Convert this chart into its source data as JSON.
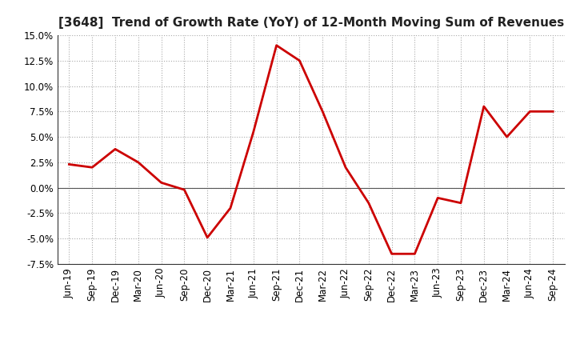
{
  "title": "[3648]  Trend of Growth Rate (YoY) of 12-Month Moving Sum of Revenues",
  "x_labels": [
    "Jun-19",
    "Sep-19",
    "Dec-19",
    "Mar-20",
    "Jun-20",
    "Sep-20",
    "Dec-20",
    "Mar-21",
    "Jun-21",
    "Sep-21",
    "Dec-21",
    "Mar-22",
    "Jun-22",
    "Sep-22",
    "Dec-22",
    "Mar-23",
    "Jun-23",
    "Sep-23",
    "Dec-23",
    "Mar-24",
    "Jun-24",
    "Sep-24"
  ],
  "y_values": [
    2.3,
    2.0,
    3.8,
    2.5,
    0.5,
    -0.2,
    -4.9,
    -2.0,
    5.5,
    14.0,
    12.5,
    7.5,
    2.0,
    -1.5,
    -6.5,
    -6.5,
    -1.0,
    -1.5,
    8.0,
    5.0,
    7.5,
    7.5
  ],
  "line_color": "#cc0000",
  "line_width": 2.0,
  "ylim": [
    -7.5,
    15.0
  ],
  "yticks": [
    -7.5,
    -5.0,
    -2.5,
    0.0,
    2.5,
    5.0,
    7.5,
    10.0,
    12.5,
    15.0
  ],
  "bg_color": "#ffffff",
  "grid_color": "#aaaaaa",
  "title_fontsize": 11,
  "tick_fontsize": 8.5
}
